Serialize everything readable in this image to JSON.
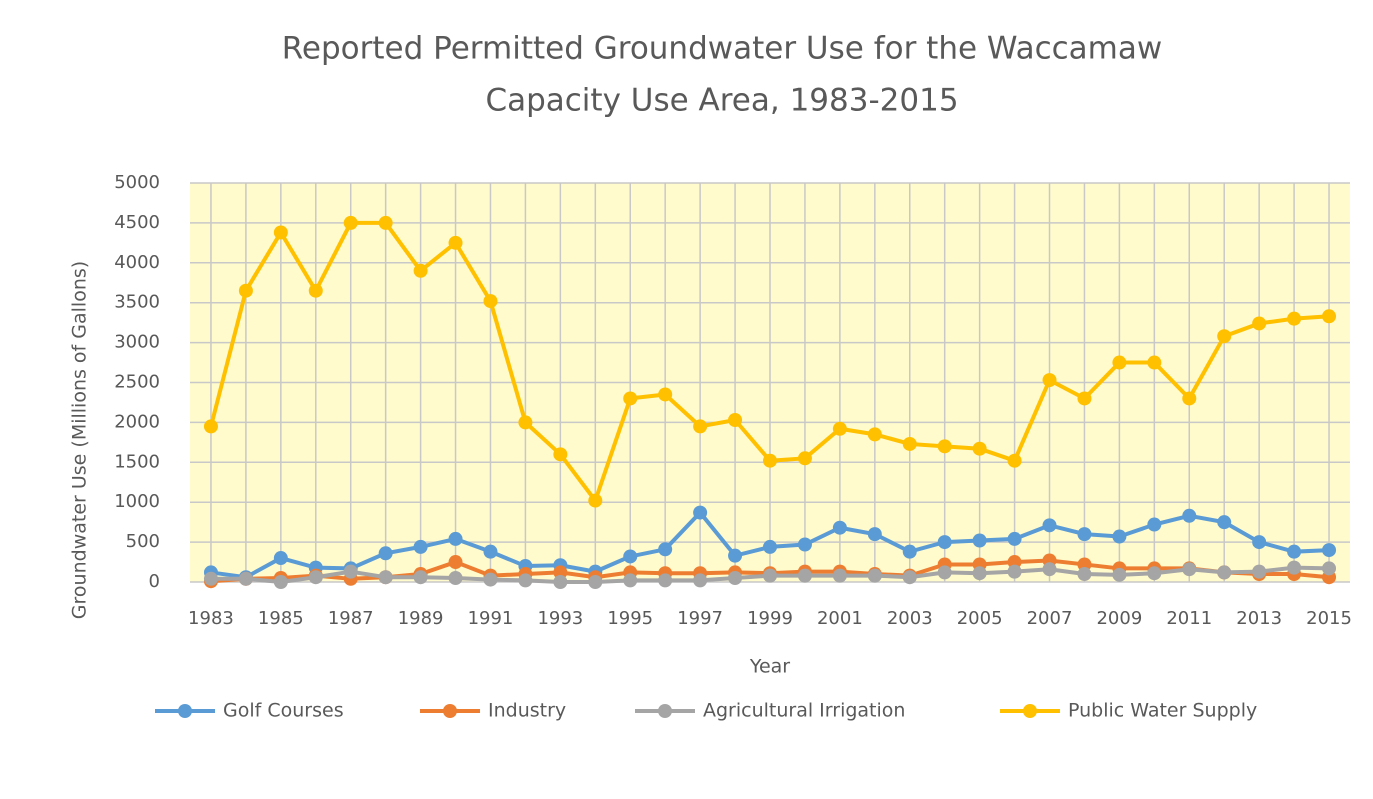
{
  "chart_data": {
    "type": "line",
    "title": [
      "Reported Permitted Groundwater Use for the Waccamaw",
      "Capacity Use Area, 1983-2015"
    ],
    "x_label": "Year",
    "y_label": "Groundwater Use (Millions of Gallons)",
    "x": [
      1983,
      1984,
      1985,
      1986,
      1987,
      1988,
      1989,
      1990,
      1991,
      1992,
      1993,
      1994,
      1995,
      1996,
      1997,
      1998,
      1999,
      2000,
      2001,
      2002,
      2003,
      2004,
      2005,
      2006,
      2007,
      2008,
      2009,
      2010,
      2011,
      2012,
      2013,
      2014,
      2015
    ],
    "xlim": [
      1982.4,
      2015.6
    ],
    "xticks": [
      1983,
      1985,
      1987,
      1989,
      1991,
      1993,
      1995,
      1997,
      1999,
      2001,
      2003,
      2005,
      2007,
      2009,
      2011,
      2013,
      2015
    ],
    "ylim": [
      0,
      5000
    ],
    "yticks": [
      0,
      500,
      1000,
      1500,
      2000,
      2500,
      3000,
      3500,
      4000,
      4500,
      5000
    ],
    "grid": true,
    "plot_background": "#fffbcc",
    "legend_position": "bottom",
    "series": [
      {
        "name": "Golf Courses",
        "color": "#5b9bd5",
        "values": [
          120,
          60,
          300,
          180,
          170,
          360,
          440,
          540,
          380,
          200,
          210,
          130,
          320,
          410,
          870,
          330,
          440,
          470,
          680,
          600,
          380,
          500,
          520,
          540,
          710,
          600,
          570,
          720,
          830,
          750,
          500,
          380,
          400
        ]
      },
      {
        "name": "Industry",
        "color": "#ed7d31",
        "values": [
          10,
          40,
          50,
          80,
          40,
          60,
          100,
          250,
          80,
          100,
          120,
          60,
          120,
          110,
          110,
          120,
          110,
          130,
          130,
          100,
          80,
          220,
          220,
          250,
          270,
          220,
          170,
          170,
          170,
          120,
          100,
          100,
          60
        ]
      },
      {
        "name": "Agricultural Irrigation",
        "color": "#a5a5a5",
        "values": [
          40,
          40,
          0,
          60,
          130,
          60,
          60,
          50,
          30,
          20,
          0,
          0,
          20,
          20,
          20,
          50,
          80,
          80,
          80,
          80,
          60,
          120,
          110,
          130,
          160,
          100,
          90,
          110,
          160,
          120,
          130,
          180,
          170
        ]
      },
      {
        "name": "Public Water Supply",
        "color": "#ffc000",
        "values": [
          1950,
          3650,
          4380,
          3650,
          4500,
          4500,
          3900,
          4250,
          3520,
          2000,
          1600,
          1020,
          2300,
          2350,
          1950,
          2030,
          1520,
          1550,
          1920,
          1850,
          1730,
          1700,
          1670,
          1520,
          2530,
          2300,
          2750,
          2750,
          2300,
          3080,
          3240,
          3300,
          3330
        ]
      }
    ]
  }
}
